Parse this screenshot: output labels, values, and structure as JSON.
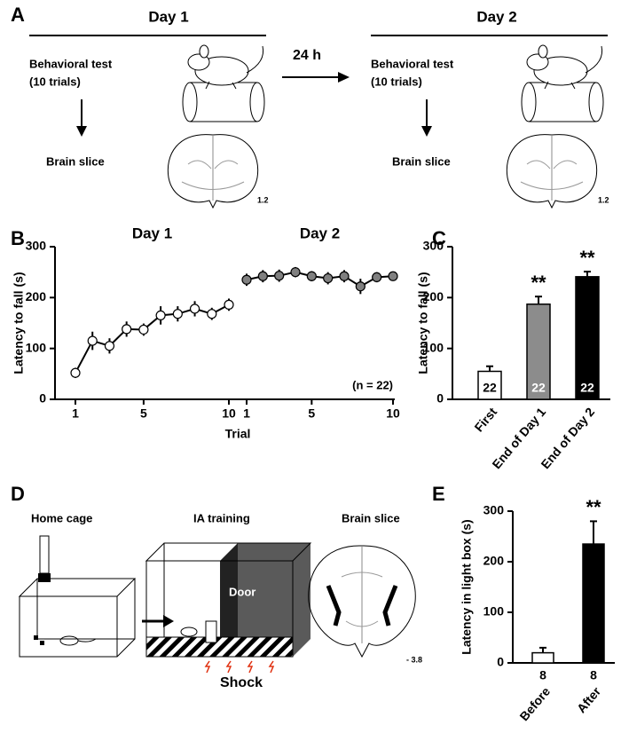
{
  "panel_a": {
    "label": "A",
    "interval": "24 h",
    "day1": {
      "title": "Day 1",
      "test": "Behavioral test",
      "trials": "(10 trials)",
      "slice": "Brain slice",
      "coordinate": "1.2"
    },
    "day2": {
      "title": "Day 2",
      "test": "Behavioral test",
      "trials": "(10 trials)",
      "slice": "Brain slice",
      "coordinate": "1.2"
    }
  },
  "panel_d": {
    "label": "D",
    "home_cage": "Home cage",
    "training": "IA training",
    "slice": "Brain slice",
    "door": "Door",
    "shock": "Shock",
    "coordinate": "- 3.8"
  },
  "chart_data": [
    {
      "type": "line",
      "label": "B",
      "xlabel": "Trial",
      "ylabel": "Latency to fall (s)",
      "annotation": "(n = 22)",
      "xlim": [
        1,
        10
      ],
      "xticks": [
        1,
        5,
        10
      ],
      "ylim": [
        0,
        300
      ],
      "yticks": [
        0,
        100,
        200,
        300
      ],
      "series": [
        {
          "name": "Day 1",
          "color": "#ffffff",
          "x": [
            1,
            2,
            3,
            4,
            5,
            6,
            7,
            8,
            9,
            10
          ],
          "values": [
            52,
            115,
            105,
            138,
            137,
            165,
            168,
            178,
            168,
            186
          ],
          "errors": [
            10,
            18,
            15,
            15,
            12,
            18,
            15,
            15,
            12,
            12
          ]
        },
        {
          "name": "Day 2",
          "color": "#808080",
          "x": [
            1,
            2,
            3,
            4,
            5,
            6,
            7,
            8,
            9,
            10
          ],
          "values": [
            235,
            242,
            243,
            250,
            242,
            238,
            242,
            222,
            240,
            242
          ],
          "errors": [
            12,
            12,
            12,
            10,
            10,
            12,
            12,
            15,
            10,
            8
          ]
        }
      ]
    },
    {
      "type": "bar",
      "label": "C",
      "ylabel": "Latency to fall (s)",
      "ylim": [
        0,
        300
      ],
      "yticks": [
        0,
        100,
        200,
        300
      ],
      "categories": [
        "First",
        "End of Day 1",
        "End of Day 2"
      ],
      "values": [
        55,
        187,
        241
      ],
      "errors": [
        10,
        15,
        10
      ],
      "colors": [
        "#ffffff",
        "#8c8c8c",
        "#000000"
      ],
      "n": [
        22,
        22,
        22
      ],
      "significance": [
        null,
        "**",
        "**"
      ]
    },
    {
      "type": "bar",
      "label": "E",
      "ylabel": "Latency in light box (s)",
      "ylim": [
        0,
        300
      ],
      "yticks": [
        0,
        100,
        200,
        300
      ],
      "categories": [
        "Before",
        "After"
      ],
      "values": [
        20,
        235
      ],
      "errors": [
        10,
        45
      ],
      "colors": [
        "#ffffff",
        "#000000"
      ],
      "n": [
        8,
        8
      ],
      "significance": [
        null,
        "**"
      ]
    }
  ]
}
